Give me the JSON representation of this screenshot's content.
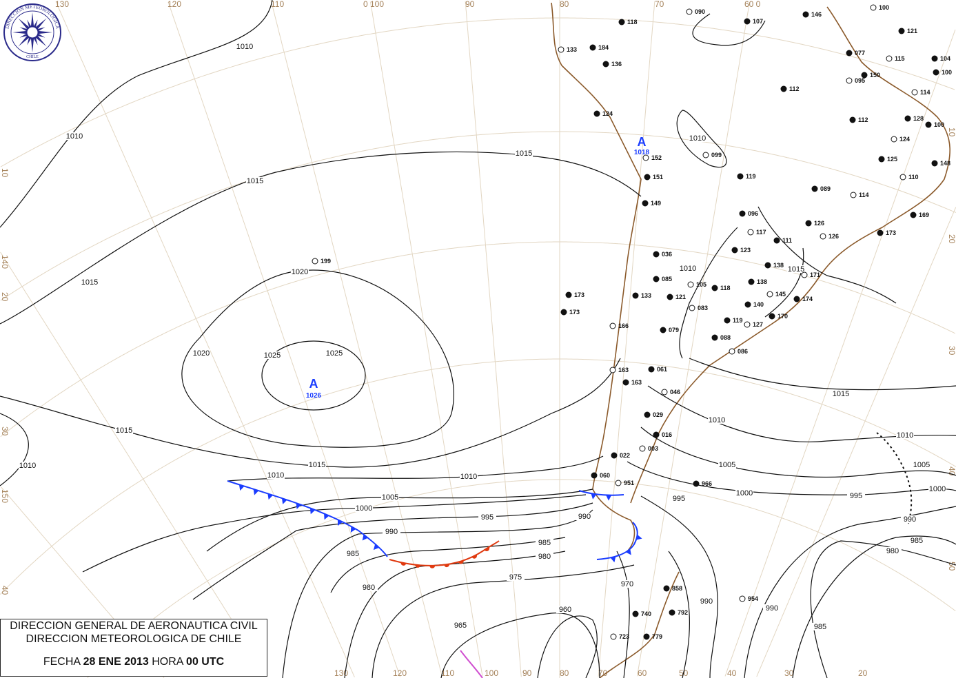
{
  "title_box": {
    "line1": "DIRECCION GENERAL DE AERONAUTICA CIVIL",
    "line2": "DIRECCION METEOROLOGICA DE CHILE",
    "fecha_label": "FECHA",
    "fecha_value": "28 ENE 2013",
    "hora_label": "HORA",
    "hora_value": "00 UTC"
  },
  "logo": {
    "text_top": "DIRECCION METEOROLOGICA",
    "text_bottom": "CHILE"
  },
  "grid_labels": {
    "top": [
      "130",
      "120",
      "110",
      "0 100",
      "90",
      "80",
      "70",
      "60 0"
    ],
    "bottom": [
      "130",
      "120",
      "110",
      "100",
      "90",
      "80",
      "70",
      "60",
      "50",
      "40",
      "30",
      "20"
    ],
    "left": [
      "10",
      "140",
      "20",
      "30",
      "150",
      "40"
    ],
    "right": [
      "10",
      "20",
      "30",
      "40",
      "50"
    ]
  },
  "pressure_centers": [
    {
      "letter": "A",
      "value": "1026"
    },
    {
      "letter": "A",
      "value": "1018"
    }
  ],
  "isobar_labels": [
    "1010",
    "1010",
    "1015",
    "1015",
    "1020",
    "1020",
    "1025",
    "1025",
    "1015",
    "1015",
    "1015",
    "1010",
    "1010",
    "1010",
    "1005",
    "1000",
    "995",
    "990",
    "985",
    "980",
    "975",
    "970",
    "965",
    "960",
    "1005",
    "1000",
    "995",
    "990",
    "985",
    "980",
    "1015",
    "1010",
    "1010",
    "1005",
    "1000",
    "995",
    "990",
    "985",
    "980",
    "990",
    "990",
    "985",
    "1010",
    "1015",
    "1010"
  ],
  "stations": [
    "199",
    "173",
    "184",
    "133",
    "136",
    "118",
    "090",
    "107",
    "146",
    "100",
    "121",
    "077",
    "115",
    "104",
    "100",
    "095",
    "150",
    "112",
    "114",
    "128",
    "100",
    "124",
    "112",
    "125",
    "110",
    "148",
    "124",
    "152",
    "151",
    "149",
    "099",
    "119",
    "173",
    "163",
    "036",
    "085",
    "105",
    "133",
    "121",
    "083",
    "118",
    "138",
    "145",
    "140",
    "119",
    "127",
    "170",
    "174",
    "171",
    "096",
    "126",
    "117",
    "111",
    "123",
    "166",
    "079",
    "088",
    "086",
    "163",
    "061",
    "046",
    "029",
    "016",
    "003",
    "022",
    "060",
    "951",
    "966",
    "858",
    "954",
    "792",
    "779",
    "723",
    "740",
    "089",
    "114",
    "169",
    "173",
    "126",
    "138"
  ],
  "colors": {
    "cold_front": "#1a3cff",
    "warm_front": "#e03a10",
    "occluded_front": "#d050d0",
    "coastline": "#8b5a2b",
    "grid": "#e2d6c2",
    "high_center": "#1a3cff"
  }
}
